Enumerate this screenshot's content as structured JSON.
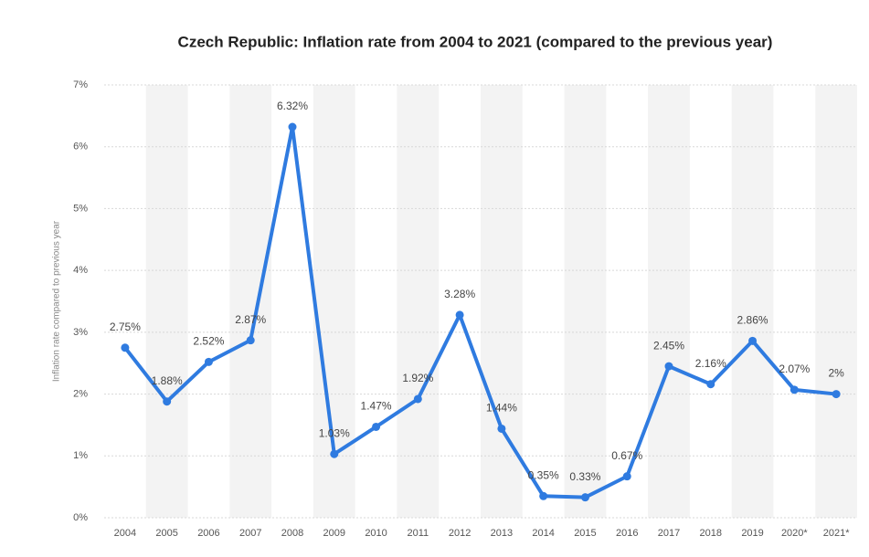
{
  "chart_data": {
    "type": "line",
    "title": "Czech Republic: Inflation rate from 2004 to 2021 (compared to the previous year)",
    "y_label": "Inflation rate compared to previous year",
    "categories": [
      "2004",
      "2005",
      "2006",
      "2007",
      "2008",
      "2009",
      "2010",
      "2011",
      "2012",
      "2013",
      "2014",
      "2015",
      "2016",
      "2017",
      "2018",
      "2019",
      "2020*",
      "2021*"
    ],
    "series": [
      {
        "color": "#2f7be0",
        "values": [
          2.75,
          1.88,
          2.52,
          2.87,
          6.32,
          1.03,
          1.47,
          1.92,
          3.28,
          1.44,
          0.35,
          0.33,
          0.67,
          2.45,
          2.16,
          2.86,
          2.07,
          2
        ],
        "value_labels": [
          "2.75%",
          "1.88%",
          "2.52%",
          "2.87%",
          "6.32%",
          "1.03%",
          "1.47%",
          "1.92%",
          "3.28%",
          "1.44%",
          "0.35%",
          "0.33%",
          "0.67%",
          "2.45%",
          "2.16%",
          "2.86%",
          "2.07%",
          "2%"
        ]
      }
    ],
    "ylim": [
      0,
      7
    ],
    "yticks": [
      {
        "value": 0,
        "label": "0%"
      },
      {
        "value": 1,
        "label": "1%"
      },
      {
        "value": 2,
        "label": "2%"
      },
      {
        "value": 3,
        "label": "3%"
      },
      {
        "value": 4,
        "label": "4%"
      },
      {
        "value": 5,
        "label": "5%"
      },
      {
        "value": 6,
        "label": "6%"
      },
      {
        "value": 7,
        "label": "7%"
      }
    ],
    "grid": true
  }
}
